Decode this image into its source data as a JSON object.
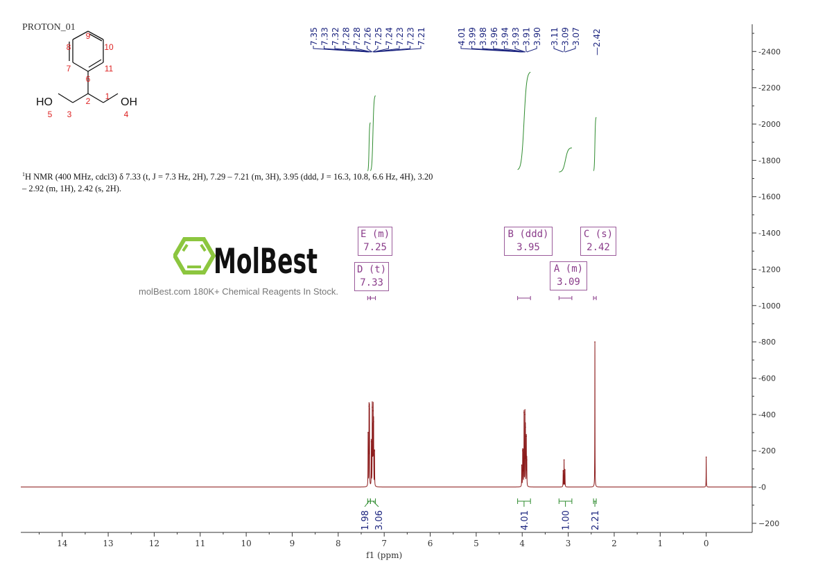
{
  "title": "PROTON_01",
  "description": {
    "prefix": "1",
    "text": "H NMR (400 MHz, cdcl3) δ 7.33 (t, J = 7.3 Hz, 2H), 7.29 – 7.21 (m, 3H), 3.95 (ddd, J = 16.3, 10.8, 6.6 Hz, 4H), 3.20 – 2.92 (m, 1H), 2.42 (s, 2H)."
  },
  "structure": {
    "atom_labels": [
      "1",
      "2",
      "3",
      "4",
      "5",
      "6",
      "7",
      "8",
      "9",
      "10",
      "11"
    ],
    "groups": [
      "HO",
      "OH"
    ]
  },
  "watermark": {
    "logo": "MolBest",
    "tagline": "molBest.com 180K+ Chemical Reagents In Stock."
  },
  "colors": {
    "spectrum": "#8b1a1a",
    "integral": "#2e8b2e",
    "peak_label": "#1a237e",
    "multiplet": "#8a3c8a"
  },
  "multiplets": [
    {
      "label": "E (m)",
      "shift": "7.25"
    },
    {
      "label": "D (t)",
      "shift": "7.33"
    },
    {
      "label": "B (ddd)",
      "shift": "3.95"
    },
    {
      "label": "C (s)",
      "shift": "2.42"
    },
    {
      "label": "A (m)",
      "shift": "3.09"
    }
  ],
  "chart_data": {
    "type": "line",
    "xlabel": "f1 (ppm)",
    "xlim": [
      14.9,
      -1.0
    ],
    "ylim": [
      -250,
      2550
    ],
    "x_ticks": [
      14,
      13,
      12,
      11,
      10,
      9,
      8,
      7,
      6,
      5,
      4,
      3,
      2,
      1,
      0
    ],
    "y_ticks": [
      -200,
      0,
      200,
      400,
      600,
      800,
      1000,
      1200,
      1400,
      1600,
      1800,
      2000,
      2200,
      2400
    ],
    "peaks": [
      {
        "ppm": 7.35,
        "height": 300
      },
      {
        "ppm": 7.33,
        "height": 445
      },
      {
        "ppm": 7.32,
        "height": 430
      },
      {
        "ppm": 7.28,
        "height": 250
      },
      {
        "ppm": 7.26,
        "height": 440
      },
      {
        "ppm": 7.25,
        "height": 300
      },
      {
        "ppm": 7.24,
        "height": 420
      },
      {
        "ppm": 7.23,
        "height": 360
      },
      {
        "ppm": 7.21,
        "height": 200
      },
      {
        "ppm": 4.01,
        "height": 120
      },
      {
        "ppm": 3.99,
        "height": 200
      },
      {
        "ppm": 3.98,
        "height": 190
      },
      {
        "ppm": 3.96,
        "height": 410
      },
      {
        "ppm": 3.94,
        "height": 400
      },
      {
        "ppm": 3.93,
        "height": 330
      },
      {
        "ppm": 3.91,
        "height": 280
      },
      {
        "ppm": 3.9,
        "height": 150
      },
      {
        "ppm": 3.11,
        "height": 90
      },
      {
        "ppm": 3.09,
        "height": 150
      },
      {
        "ppm": 3.07,
        "height": 95
      },
      {
        "ppm": 2.42,
        "height": 800
      },
      {
        "ppm": 0.0,
        "height": 165
      }
    ],
    "peak_label_groups": [
      [
        "7.35",
        "7.33",
        "7.32",
        "7.28",
        "7.28",
        "7.26",
        "7.25",
        "7.24",
        "7.23",
        "7.23",
        "7.21"
      ],
      [
        "4.01",
        "3.99",
        "3.98",
        "3.96",
        "3.94",
        "3.93",
        "3.91",
        "3.90"
      ],
      [
        "3.11",
        "3.09",
        "3.07"
      ],
      [
        "2.42"
      ]
    ],
    "integrals": [
      {
        "from": 7.36,
        "to": 7.3,
        "value": "1.98",
        "curve": [
          1740,
          2010
        ]
      },
      {
        "from": 7.3,
        "to": 7.19,
        "value": "3.06",
        "curve": [
          1740,
          2160
        ]
      },
      {
        "from": 4.1,
        "to": 3.82,
        "value": "4.01",
        "curve": [
          1745,
          2290
        ]
      },
      {
        "from": 3.2,
        "to": 2.92,
        "value": "1.00",
        "curve": [
          1735,
          1870
        ]
      },
      {
        "from": 2.45,
        "to": 2.39,
        "value": "2.21",
        "curve": [
          1740,
          2040
        ]
      }
    ],
    "multiplet_ranges": [
      [
        7.3,
        7.19
      ],
      [
        7.36,
        7.3
      ],
      [
        4.1,
        3.82
      ],
      [
        3.2,
        2.92
      ],
      [
        2.45,
        2.39
      ]
    ]
  }
}
